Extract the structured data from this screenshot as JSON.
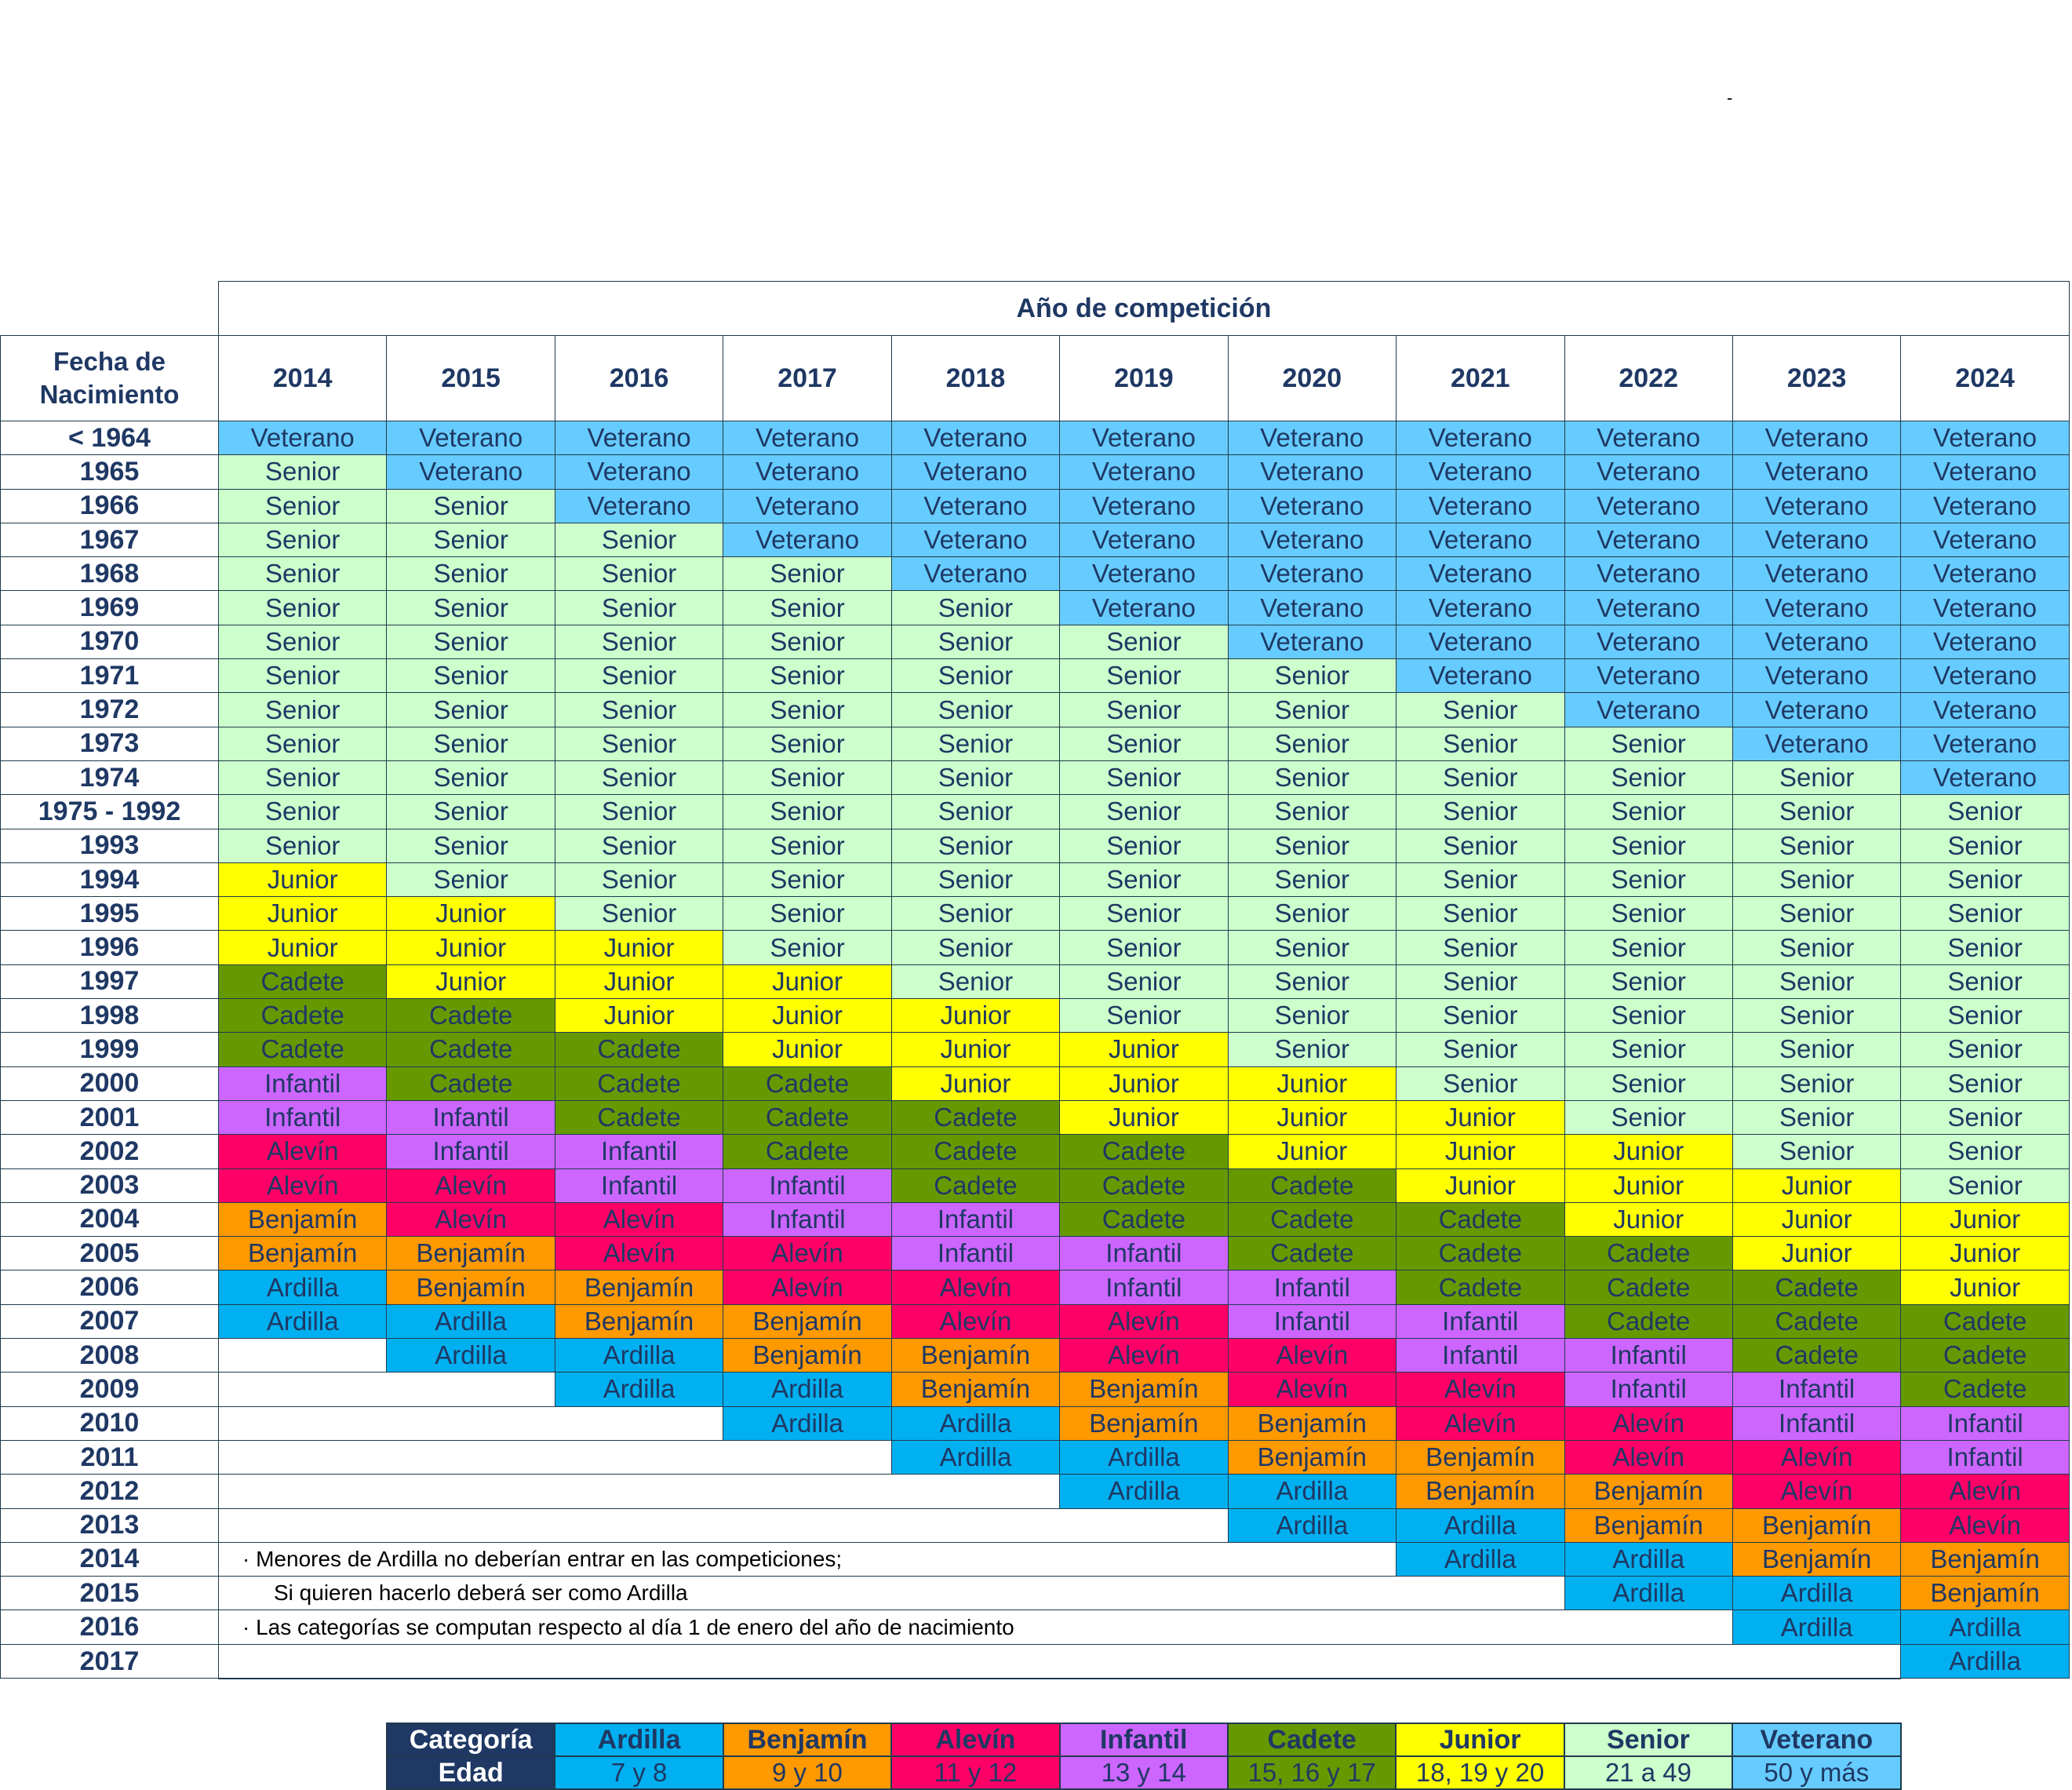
{
  "header": {
    "title": "Año de competición",
    "fecha_label": "Fecha de Nacimiento",
    "years": [
      "2014",
      "2015",
      "2016",
      "2017",
      "2018",
      "2019",
      "2020",
      "2021",
      "2022",
      "2023",
      "2024"
    ]
  },
  "categories": {
    "Ardilla": {
      "color": "#00b0f0",
      "age": "7 y 8"
    },
    "Benjamín": {
      "color": "#ff9900",
      "age": "9 y 10"
    },
    "Alevín": {
      "color": "#ff0066",
      "age": "11 y 12"
    },
    "Infantil": {
      "color": "#cc66ff",
      "age": "13 y 14"
    },
    "Cadete": {
      "color": "#669900",
      "age": "15, 16 y 17"
    },
    "Junior": {
      "color": "#ffff00",
      "age": "18, 19 y 20"
    },
    "Senior": {
      "color": "#ccffcc",
      "age": "21 a 49"
    },
    "Veterano": {
      "color": "#66ccff",
      "age": "50 y más"
    }
  },
  "rows": [
    {
      "label": "< 1964",
      "cells": [
        "Veterano",
        "Veterano",
        "Veterano",
        "Veterano",
        "Veterano",
        "Veterano",
        "Veterano",
        "Veterano",
        "Veterano",
        "Veterano",
        "Veterano"
      ]
    },
    {
      "label": "1965",
      "cells": [
        "Senior",
        "Veterano",
        "Veterano",
        "Veterano",
        "Veterano",
        "Veterano",
        "Veterano",
        "Veterano",
        "Veterano",
        "Veterano",
        "Veterano"
      ]
    },
    {
      "label": "1966",
      "cells": [
        "Senior",
        "Senior",
        "Veterano",
        "Veterano",
        "Veterano",
        "Veterano",
        "Veterano",
        "Veterano",
        "Veterano",
        "Veterano",
        "Veterano"
      ]
    },
    {
      "label": "1967",
      "cells": [
        "Senior",
        "Senior",
        "Senior",
        "Veterano",
        "Veterano",
        "Veterano",
        "Veterano",
        "Veterano",
        "Veterano",
        "Veterano",
        "Veterano"
      ]
    },
    {
      "label": "1968",
      "cells": [
        "Senior",
        "Senior",
        "Senior",
        "Senior",
        "Veterano",
        "Veterano",
        "Veterano",
        "Veterano",
        "Veterano",
        "Veterano",
        "Veterano"
      ]
    },
    {
      "label": "1969",
      "cells": [
        "Senior",
        "Senior",
        "Senior",
        "Senior",
        "Senior",
        "Veterano",
        "Veterano",
        "Veterano",
        "Veterano",
        "Veterano",
        "Veterano"
      ]
    },
    {
      "label": "1970",
      "cells": [
        "Senior",
        "Senior",
        "Senior",
        "Senior",
        "Senior",
        "Senior",
        "Veterano",
        "Veterano",
        "Veterano",
        "Veterano",
        "Veterano"
      ]
    },
    {
      "label": "1971",
      "cells": [
        "Senior",
        "Senior",
        "Senior",
        "Senior",
        "Senior",
        "Senior",
        "Senior",
        "Veterano",
        "Veterano",
        "Veterano",
        "Veterano"
      ]
    },
    {
      "label": "1972",
      "cells": [
        "Senior",
        "Senior",
        "Senior",
        "Senior",
        "Senior",
        "Senior",
        "Senior",
        "Senior",
        "Veterano",
        "Veterano",
        "Veterano"
      ]
    },
    {
      "label": "1973",
      "cells": [
        "Senior",
        "Senior",
        "Senior",
        "Senior",
        "Senior",
        "Senior",
        "Senior",
        "Senior",
        "Senior",
        "Veterano",
        "Veterano"
      ]
    },
    {
      "label": "1974",
      "cells": [
        "Senior",
        "Senior",
        "Senior",
        "Senior",
        "Senior",
        "Senior",
        "Senior",
        "Senior",
        "Senior",
        "Senior",
        "Veterano"
      ]
    },
    {
      "label": "1975 - 1992",
      "cells": [
        "Senior",
        "Senior",
        "Senior",
        "Senior",
        "Senior",
        "Senior",
        "Senior",
        "Senior",
        "Senior",
        "Senior",
        "Senior"
      ]
    },
    {
      "label": "1993",
      "cells": [
        "Senior",
        "Senior",
        "Senior",
        "Senior",
        "Senior",
        "Senior",
        "Senior",
        "Senior",
        "Senior",
        "Senior",
        "Senior"
      ]
    },
    {
      "label": "1994",
      "cells": [
        "Junior",
        "Senior",
        "Senior",
        "Senior",
        "Senior",
        "Senior",
        "Senior",
        "Senior",
        "Senior",
        "Senior",
        "Senior"
      ]
    },
    {
      "label": "1995",
      "cells": [
        "Junior",
        "Junior",
        "Senior",
        "Senior",
        "Senior",
        "Senior",
        "Senior",
        "Senior",
        "Senior",
        "Senior",
        "Senior"
      ]
    },
    {
      "label": "1996",
      "cells": [
        "Junior",
        "Junior",
        "Junior",
        "Senior",
        "Senior",
        "Senior",
        "Senior",
        "Senior",
        "Senior",
        "Senior",
        "Senior"
      ]
    },
    {
      "label": "1997",
      "cells": [
        "Cadete",
        "Junior",
        "Junior",
        "Junior",
        "Senior",
        "Senior",
        "Senior",
        "Senior",
        "Senior",
        "Senior",
        "Senior"
      ]
    },
    {
      "label": "1998",
      "cells": [
        "Cadete",
        "Cadete",
        "Junior",
        "Junior",
        "Junior",
        "Senior",
        "Senior",
        "Senior",
        "Senior",
        "Senior",
        "Senior"
      ]
    },
    {
      "label": "1999",
      "cells": [
        "Cadete",
        "Cadete",
        "Cadete",
        "Junior",
        "Junior",
        "Junior",
        "Senior",
        "Senior",
        "Senior",
        "Senior",
        "Senior"
      ]
    },
    {
      "label": "2000",
      "cells": [
        "Infantil",
        "Cadete",
        "Cadete",
        "Cadete",
        "Junior",
        "Junior",
        "Junior",
        "Senior",
        "Senior",
        "Senior",
        "Senior"
      ]
    },
    {
      "label": "2001",
      "cells": [
        "Infantil",
        "Infantil",
        "Cadete",
        "Cadete",
        "Cadete",
        "Junior",
        "Junior",
        "Junior",
        "Senior",
        "Senior",
        "Senior"
      ]
    },
    {
      "label": "2002",
      "cells": [
        "Alevín",
        "Infantil",
        "Infantil",
        "Cadete",
        "Cadete",
        "Cadete",
        "Junior",
        "Junior",
        "Junior",
        "Senior",
        "Senior"
      ]
    },
    {
      "label": "2003",
      "cells": [
        "Alevín",
        "Alevín",
        "Infantil",
        "Infantil",
        "Cadete",
        "Cadete",
        "Cadete",
        "Junior",
        "Junior",
        "Junior",
        "Senior"
      ]
    },
    {
      "label": "2004",
      "cells": [
        "Benjamín",
        "Alevín",
        "Alevín",
        "Infantil",
        "Infantil",
        "Cadete",
        "Cadete",
        "Cadete",
        "Junior",
        "Junior",
        "Junior"
      ]
    },
    {
      "label": "2005",
      "cells": [
        "Benjamín",
        "Benjamín",
        "Alevín",
        "Alevín",
        "Infantil",
        "Infantil",
        "Cadete",
        "Cadete",
        "Cadete",
        "Junior",
        "Junior"
      ]
    },
    {
      "label": "2006",
      "cells": [
        "Ardilla",
        "Benjamín",
        "Benjamín",
        "Alevín",
        "Alevín",
        "Infantil",
        "Infantil",
        "Cadete",
        "Cadete",
        "Cadete",
        "Junior"
      ]
    },
    {
      "label": "2007",
      "cells": [
        "Ardilla",
        "Ardilla",
        "Benjamín",
        "Benjamín",
        "Alevín",
        "Alevín",
        "Infantil",
        "Infantil",
        "Cadete",
        "Cadete",
        "Cadete"
      ]
    },
    {
      "label": "2008",
      "cells": [
        "",
        "Ardilla",
        "Ardilla",
        "Benjamín",
        "Benjamín",
        "Alevín",
        "Alevín",
        "Infantil",
        "Infantil",
        "Cadete",
        "Cadete"
      ]
    },
    {
      "label": "2009",
      "cells": [
        "",
        "",
        "Ardilla",
        "Ardilla",
        "Benjamín",
        "Benjamín",
        "Alevín",
        "Alevín",
        "Infantil",
        "Infantil",
        "Cadete"
      ]
    },
    {
      "label": "2010",
      "cells": [
        "",
        "",
        "",
        "Ardilla",
        "Ardilla",
        "Benjamín",
        "Benjamín",
        "Alevín",
        "Alevín",
        "Infantil",
        "Infantil"
      ]
    },
    {
      "label": "2011",
      "cells": [
        "",
        "",
        "",
        "",
        "Ardilla",
        "Ardilla",
        "Benjamín",
        "Benjamín",
        "Alevín",
        "Alevín",
        "Infantil"
      ]
    },
    {
      "label": "2012",
      "cells": [
        "",
        "",
        "",
        "",
        "",
        "Ardilla",
        "Ardilla",
        "Benjamín",
        "Benjamín",
        "Alevín",
        "Alevín"
      ]
    },
    {
      "label": "2013",
      "cells": [
        "",
        "",
        "",
        "",
        "",
        "",
        "Ardilla",
        "Ardilla",
        "Benjamín",
        "Benjamín",
        "Alevín"
      ]
    },
    {
      "label": "2014",
      "cells": [
        "",
        "",
        "",
        "",
        "",
        "",
        "",
        "Ardilla",
        "Ardilla",
        "Benjamín",
        "Benjamín"
      ]
    },
    {
      "label": "2015",
      "cells": [
        "",
        "",
        "",
        "",
        "",
        "",
        "",
        "",
        "Ardilla",
        "Ardilla",
        "Benjamín"
      ]
    },
    {
      "label": "2016",
      "cells": [
        "",
        "",
        "",
        "",
        "",
        "",
        "",
        "",
        "",
        "Ardilla",
        "Ardilla"
      ]
    },
    {
      "label": "2017",
      "cells": [
        "",
        "",
        "",
        "",
        "",
        "",
        "",
        "",
        "",
        "",
        "Ardilla"
      ]
    }
  ],
  "notes": {
    "note1": "· Menores de Ardilla no deberían entrar en las competiciones;",
    "note2": "Si quieren hacerlo deberá ser como Ardilla",
    "note3": "· Las categorías se computan respecto al día 1 de enero del año de nacimiento"
  },
  "legend": {
    "categoria_label": "Categoría",
    "edad_label": "Edad",
    "items": [
      "Ardilla",
      "Benjamín",
      "Alevín",
      "Infantil",
      "Cadete",
      "Junior",
      "Senior",
      "Veterano"
    ]
  },
  "misc": {
    "dash": "-"
  }
}
